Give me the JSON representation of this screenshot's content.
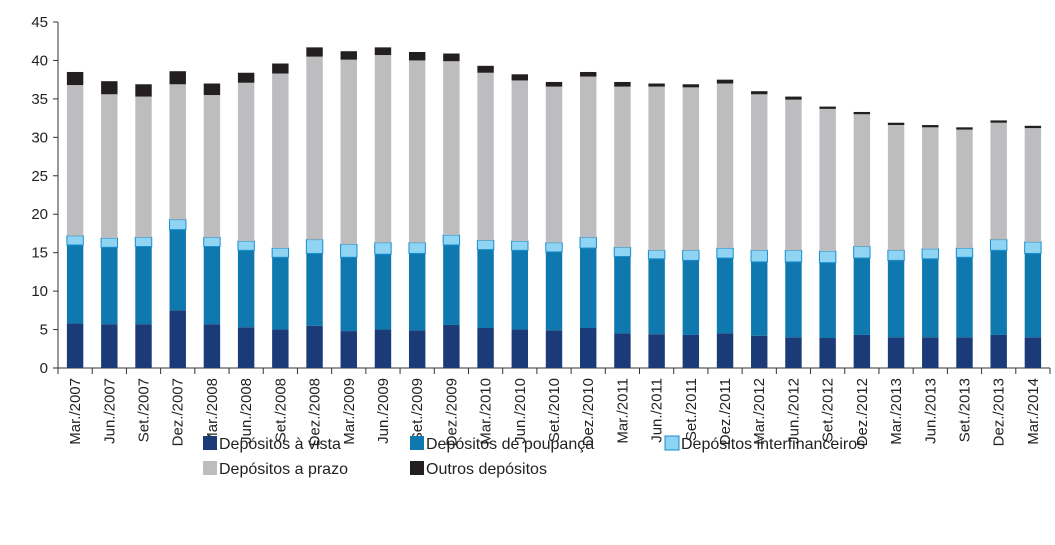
{
  "chart_data": {
    "type": "bar",
    "stacked": true,
    "categories": [
      "Mar./2007",
      "Jun./2007",
      "Set./2007",
      "Dez./2007",
      "Mar./2008",
      "Jun./2008",
      "Set./2008",
      "Dez./2008",
      "Mar./2009",
      "Jun./2009",
      "Set./2009",
      "Dez./2009",
      "Mar./2010",
      "Jun./2010",
      "Set./2010",
      "Dez./2010",
      "Mar./2011",
      "Jun./2011",
      "Set./2011",
      "Dez./2011",
      "Mar./2012",
      "Jun./2012",
      "Set./2012",
      "Dez./2012",
      "Mar./2013",
      "Jun./2013",
      "Set./2013",
      "Dez./2013",
      "Mar./2014"
    ],
    "series": [
      {
        "name": "Depósitos à vista",
        "color": "#1b3a78",
        "values": [
          5.8,
          5.7,
          5.7,
          7.5,
          5.7,
          5.3,
          5.0,
          5.5,
          4.8,
          5.0,
          4.9,
          5.6,
          5.2,
          5.0,
          4.9,
          5.2,
          4.5,
          4.4,
          4.3,
          4.5,
          4.2,
          4.0,
          3.9,
          4.3,
          4.0,
          4.0,
          4.0,
          4.3,
          4.0
        ]
      },
      {
        "name": "Depósitos de poupança",
        "color": "#0f78ae",
        "values": [
          10.2,
          10.0,
          10.1,
          10.5,
          10.1,
          10.0,
          9.4,
          9.4,
          9.6,
          9.8,
          10.0,
          10.4,
          10.2,
          10.3,
          10.2,
          10.4,
          10.0,
          9.8,
          9.7,
          9.8,
          9.6,
          9.8,
          9.8,
          10.0,
          10.0,
          10.2,
          10.4,
          11.0,
          10.9
        ]
      },
      {
        "name": "Depósitos interfinanceiros",
        "color": "#8fd4f2",
        "values": [
          1.2,
          1.2,
          1.2,
          1.3,
          1.2,
          1.2,
          1.2,
          1.8,
          1.7,
          1.5,
          1.4,
          1.3,
          1.2,
          1.2,
          1.2,
          1.4,
          1.2,
          1.1,
          1.3,
          1.3,
          1.5,
          1.5,
          1.5,
          1.5,
          1.3,
          1.3,
          1.2,
          1.4,
          1.5
        ]
      },
      {
        "name": "Depósitos a prazo",
        "color": "#bdbdc0",
        "values": [
          19.6,
          18.7,
          18.3,
          17.6,
          18.5,
          20.6,
          22.7,
          23.8,
          24.0,
          24.4,
          23.7,
          22.6,
          21.8,
          20.9,
          20.3,
          20.9,
          20.9,
          21.3,
          21.2,
          21.4,
          20.3,
          19.6,
          18.5,
          17.2,
          16.3,
          15.8,
          15.4,
          15.2,
          14.8
        ]
      },
      {
        "name": "Outros depósitos",
        "color": "#231f20",
        "values": [
          1.7,
          1.7,
          1.6,
          1.7,
          1.5,
          1.3,
          1.3,
          1.2,
          1.1,
          1.0,
          1.1,
          1.0,
          0.9,
          0.8,
          0.6,
          0.6,
          0.6,
          0.4,
          0.4,
          0.5,
          0.4,
          0.4,
          0.3,
          0.3,
          0.3,
          0.3,
          0.3,
          0.3,
          0.3
        ]
      }
    ],
    "ylim": [
      0,
      45
    ],
    "yticks": [
      0,
      5,
      10,
      15,
      20,
      25,
      30,
      35,
      40,
      45
    ],
    "grid": false
  }
}
